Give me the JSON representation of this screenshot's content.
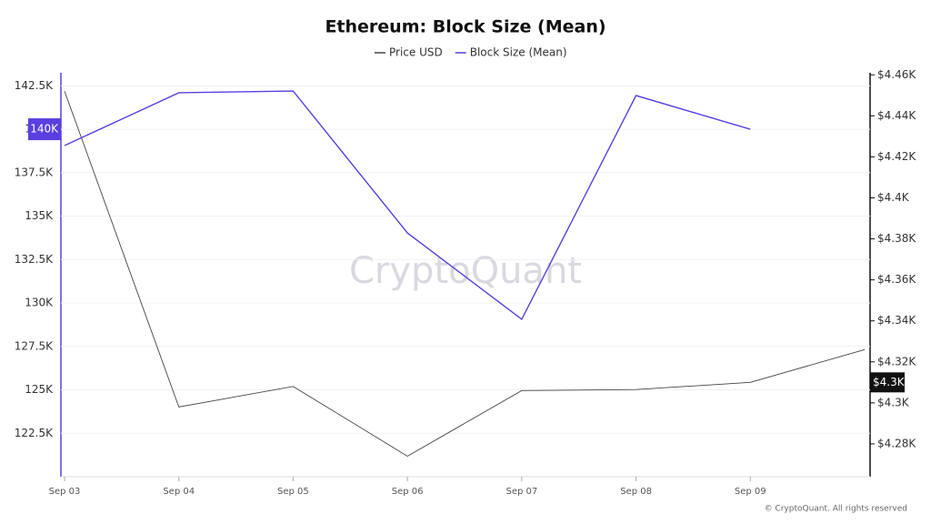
{
  "chart_data": {
    "type": "line",
    "title": "Ethereum: Block Size (Mean)",
    "categories": [
      "Sep 03",
      "Sep 04",
      "Sep 05",
      "Sep 06",
      "Sep 07",
      "Sep 08",
      "Sep 09",
      null
    ],
    "series": [
      {
        "name": "Price USD",
        "color": "#444444",
        "axis": "y2",
        "values": [
          4452,
          4298,
          4308,
          4274,
          4306,
          4306.5,
          4310,
          4326
        ]
      },
      {
        "name": "Block Size (Mean)",
        "color": "#5b3fe0",
        "values": [
          139060,
          142100,
          142200,
          134030,
          129060,
          141940,
          140000,
          null
        ]
      }
    ],
    "ylim": [
      120000,
      143250
    ],
    "yticks": [
      {
        "value": 122500,
        "label": "122.5K"
      },
      {
        "value": 125000,
        "label": "125K"
      },
      {
        "value": 127500,
        "label": "127.5K"
      },
      {
        "value": 130000,
        "label": "130K"
      },
      {
        "value": 132500,
        "label": "132.5K"
      },
      {
        "value": 135000,
        "label": "135K"
      },
      {
        "value": 137500,
        "label": "137.5K"
      },
      {
        "value": 140000,
        "label": "140K"
      },
      {
        "value": 142500,
        "label": "142.5K"
      }
    ],
    "y2lim": [
      4264,
      4461
    ],
    "y2ticks": [
      {
        "value": 4280,
        "label": "$4.28K"
      },
      {
        "value": 4300,
        "label": "$4.3K"
      },
      {
        "value": 4320,
        "label": "$4.32K"
      },
      {
        "value": 4340,
        "label": "$4.34K"
      },
      {
        "value": 4360,
        "label": "$4.36K"
      },
      {
        "value": 4380,
        "label": "$4.38K"
      },
      {
        "value": 4400,
        "label": "$4.4K"
      },
      {
        "value": 4420,
        "label": "$4.42K"
      },
      {
        "value": 4440,
        "label": "$4.44K"
      },
      {
        "value": 4460,
        "label": "$4.46K"
      }
    ],
    "y_marker": {
      "value": 140000,
      "label": "140K"
    },
    "y2_marker": {
      "value": 4310,
      "label": "$4.3K"
    },
    "grid": true,
    "watermark": "CryptoQuant",
    "copyright": "© CryptoQuant. All rights reserved"
  }
}
